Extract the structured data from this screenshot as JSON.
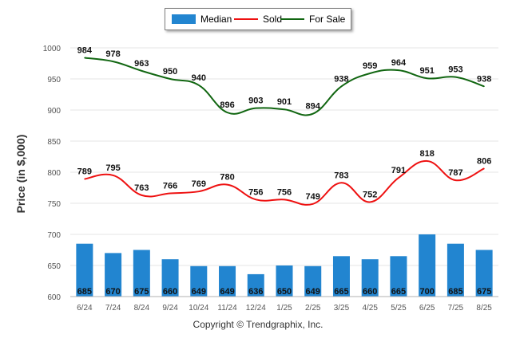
{
  "legend": {
    "median": "Median",
    "sold": "Sold",
    "for_sale": "For Sale"
  },
  "copyright": "Copyright © Trendgraphix, Inc.",
  "colors": {
    "median": "#2285d0",
    "sold": "#ee1111",
    "for_sale": "#116611",
    "grid": "#e6e6e6",
    "axis_text": "#555555"
  },
  "chart_data": {
    "type": "bar",
    "categories": [
      "6/24",
      "7/24",
      "8/24",
      "9/24",
      "10/24",
      "11/24",
      "12/24",
      "1/25",
      "2/25",
      "3/25",
      "4/25",
      "5/25",
      "6/25",
      "7/25",
      "8/25"
    ],
    "ylabel": "Price (in $,000)",
    "ylim": [
      600,
      1000
    ],
    "yticks": [
      600,
      650,
      700,
      750,
      800,
      850,
      900,
      950,
      1000
    ],
    "grid": true,
    "legend_position": "top-center",
    "series": [
      {
        "name": "Median",
        "type": "bar",
        "values": [
          685,
          670,
          675,
          660,
          649,
          649,
          636,
          650,
          649,
          665,
          660,
          665,
          700,
          685,
          675
        ]
      },
      {
        "name": "Sold",
        "type": "line",
        "values": [
          789,
          795,
          763,
          766,
          769,
          780,
          756,
          756,
          749,
          783,
          752,
          791,
          818,
          787,
          806
        ]
      },
      {
        "name": "For Sale",
        "type": "line",
        "values": [
          984,
          978,
          963,
          950,
          940,
          896,
          903,
          901,
          894,
          938,
          959,
          964,
          951,
          953,
          938
        ]
      }
    ]
  }
}
